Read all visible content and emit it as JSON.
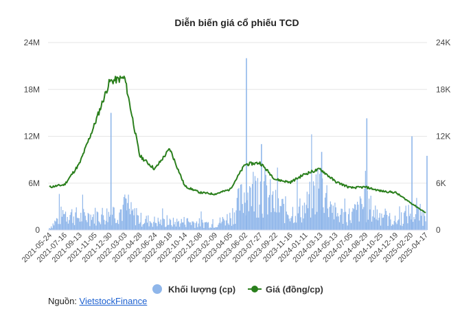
{
  "chart_data": {
    "type": "bar+line",
    "title": "Diễn biến giá cổ phiếu TCD",
    "left_axis": {
      "ticks": [
        0,
        6,
        12,
        18,
        24
      ],
      "labels": [
        "0",
        "6M",
        "12M",
        "18M",
        "24M"
      ],
      "ylim": [
        0,
        24000000
      ]
    },
    "right_axis": {
      "ticks": [
        0,
        6,
        12,
        18,
        24
      ],
      "labels": [
        "0",
        "6K",
        "12K",
        "18K",
        "24K"
      ],
      "ylim": [
        0,
        24000
      ]
    },
    "x_tick_labels": [
      "2021-05-24",
      "2021-07-16",
      "2021-09-13",
      "2021-11-05",
      "2021-12-30",
      "2022-03-03",
      "2022-04-28",
      "2022-06-24",
      "2022-08-18",
      "2022-10-14",
      "2022-12-08",
      "2023-02-09",
      "2023-04-05",
      "2023-06-02",
      "2023-07-27",
      "2023-09-22",
      "2023-11-16",
      "2024-01-11",
      "2024-03-13",
      "2024-05-13",
      "2024-07-05",
      "2024-08-29",
      "2024-10-25",
      "2024-12-19",
      "2025-02-20",
      "2025-04-17"
    ],
    "grid": true,
    "legend_position": "bottom",
    "series": [
      {
        "name": "Khối lượng (cp)",
        "type": "bar",
        "axis": "left",
        "color": "#8fb6ea",
        "x": [
          "2021-05-24",
          "2021-07-16",
          "2021-09-13",
          "2021-11-05",
          "2021-12-30",
          "2022-03-03",
          "2022-04-28",
          "2022-06-24",
          "2022-08-18",
          "2022-10-14",
          "2022-12-08",
          "2023-02-09",
          "2023-04-05",
          "2023-06-02",
          "2023-07-27",
          "2023-09-22",
          "2023-11-16",
          "2024-01-11",
          "2024-03-13",
          "2024-05-13",
          "2024-07-05",
          "2024-08-29",
          "2024-10-25",
          "2024-12-19",
          "2025-02-20",
          "2025-04-17"
        ],
        "values": [
          300000,
          2500000,
          1800000,
          2000000,
          2200000,
          3000000,
          1500000,
          1200000,
          1000000,
          1200000,
          1000000,
          800000,
          1800000,
          5000000,
          6000000,
          3500000,
          2500000,
          3000000,
          6500000,
          2200000,
          2000000,
          3500000,
          2000000,
          1200000,
          2500000,
          2000000
        ],
        "peaks": [
          {
            "x": "2021-12-30",
            "value": 15000000
          },
          {
            "x": "2022-03-03",
            "value": 4000000
          },
          {
            "x": "2023-06-02",
            "value": 22000000
          },
          {
            "x": "2023-07-27",
            "value": 11000000
          },
          {
            "x": "2024-03-13",
            "value": 10000000
          },
          {
            "x": "2024-08-29",
            "value": 14300000
          },
          {
            "x": "2025-02-20",
            "value": 12000000
          },
          {
            "x": "2025-04-17",
            "value": 9500000
          }
        ]
      },
      {
        "name": "Giá (đồng/cp)",
        "type": "line",
        "axis": "right",
        "color": "#2a7f1c",
        "x": [
          "2021-05-24",
          "2021-07-16",
          "2021-09-13",
          "2021-11-05",
          "2021-12-30",
          "2022-03-03",
          "2022-04-28",
          "2022-06-24",
          "2022-08-18",
          "2022-10-14",
          "2022-12-08",
          "2023-02-09",
          "2023-04-05",
          "2023-06-02",
          "2023-07-27",
          "2023-09-22",
          "2023-11-16",
          "2024-01-11",
          "2024-03-13",
          "2024-05-13",
          "2024-07-05",
          "2024-08-29",
          "2024-10-25",
          "2024-12-19",
          "2025-02-20",
          "2025-04-17"
        ],
        "values": [
          5500,
          5800,
          8500,
          13500,
          19000,
          19500,
          9500,
          7800,
          10400,
          5600,
          4800,
          4600,
          5200,
          8400,
          8600,
          6500,
          6100,
          7200,
          7800,
          6200,
          5400,
          5500,
          5000,
          4800,
          3500,
          2200
        ]
      }
    ]
  },
  "legend": [
    {
      "label": "Khối lượng (cp)",
      "color": "#8fb6ea"
    },
    {
      "label": "Giá (đồng/cp)",
      "color": "#2a7f1c"
    }
  ],
  "source": {
    "prefix": "Nguồn: ",
    "link_text": "VietstockFinance"
  }
}
